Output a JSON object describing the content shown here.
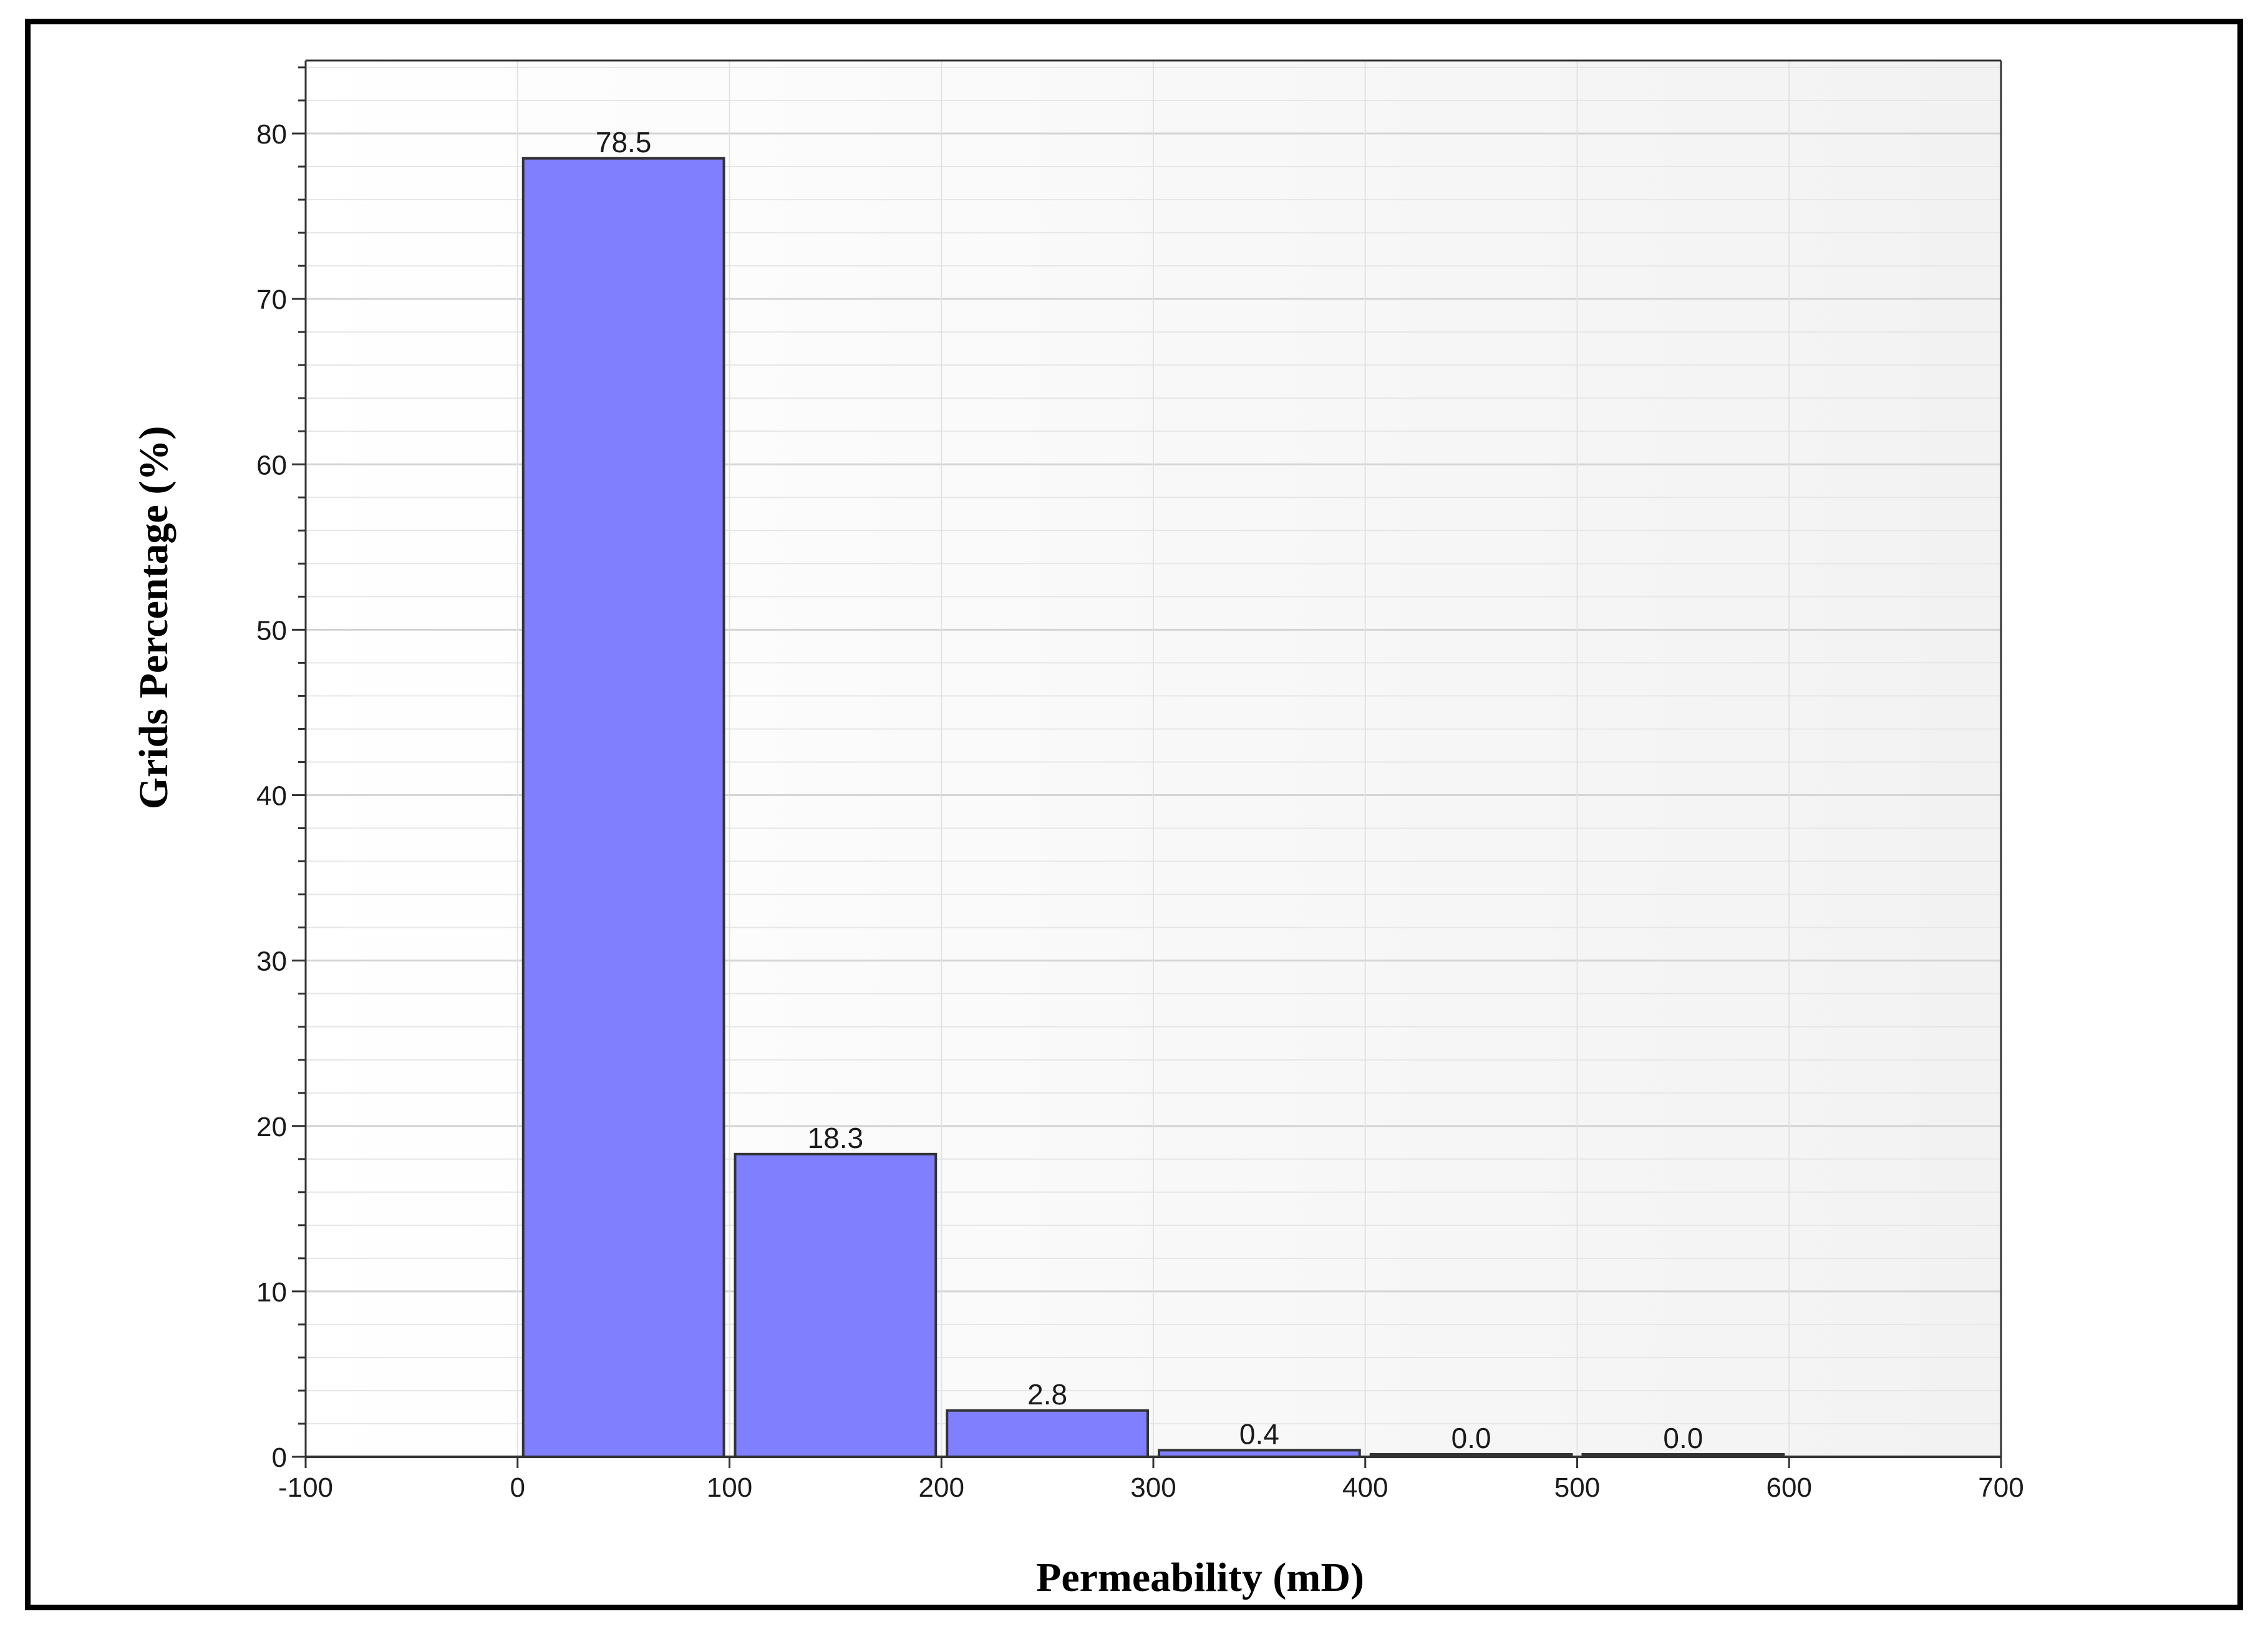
{
  "chart_data": {
    "type": "bar",
    "title": "",
    "xlabel": "Permeability (mD)",
    "ylabel": "Grids Percentage (%)",
    "xlim": [
      -100,
      700
    ],
    "ylim": [
      0,
      80
    ],
    "x_ticks": [
      -100,
      0,
      100,
      200,
      300,
      400,
      500,
      600,
      700
    ],
    "y_ticks": [
      0,
      10,
      20,
      30,
      40,
      50,
      60,
      70,
      80
    ],
    "grid": true,
    "legend": "none",
    "bar_color": "#8080ff",
    "bar_edge_color": "#333333",
    "bins": [
      {
        "start": 0,
        "end": 100,
        "value": 78.5,
        "label": "78.5"
      },
      {
        "start": 100,
        "end": 200,
        "value": 18.3,
        "label": "18.3"
      },
      {
        "start": 200,
        "end": 300,
        "value": 2.8,
        "label": "2.8"
      },
      {
        "start": 300,
        "end": 400,
        "value": 0.4,
        "label": "0.4"
      },
      {
        "start": 400,
        "end": 500,
        "value": 0.0,
        "label": "0.0"
      },
      {
        "start": 500,
        "end": 600,
        "value": 0.0,
        "label": "0.0"
      }
    ]
  }
}
